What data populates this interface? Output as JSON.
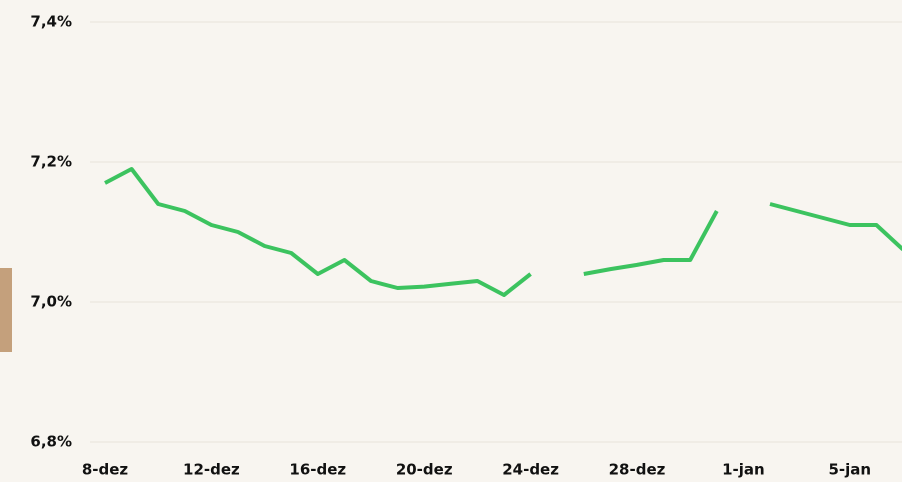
{
  "chart_data": {
    "type": "line",
    "categories": [
      "8-dez",
      null,
      null,
      null,
      "12-dez",
      null,
      null,
      null,
      "16-dez",
      null,
      null,
      null,
      "20-dez",
      null,
      null,
      null,
      "24-dez",
      null,
      null,
      null,
      "28-dez",
      null,
      null,
      null,
      "1-jan",
      null,
      null,
      null,
      "5-jan",
      null,
      null
    ],
    "series": [
      {
        "color": "#3cc35f",
        "values": [
          7.17,
          7.19,
          7.14,
          7.13,
          7.11,
          7.1,
          7.08,
          7.07,
          7.04,
          7.06,
          7.03,
          7.02,
          7.022,
          7.026,
          7.03,
          7.01,
          7.04,
          null,
          7.04,
          7.047,
          7.053,
          7.06,
          7.06,
          7.13,
          null,
          7.14,
          7.13,
          7.12,
          7.11,
          7.11,
          7.075
        ]
      }
    ],
    "ylim": [
      6.8,
      7.4
    ],
    "yticks": [
      {
        "value": 6.8,
        "label": "6,8%"
      },
      {
        "value": 7.0,
        "label": "7,0%"
      },
      {
        "value": 7.2,
        "label": "7,2%"
      },
      {
        "value": 7.4,
        "label": "7,4%"
      }
    ],
    "grid": true
  }
}
